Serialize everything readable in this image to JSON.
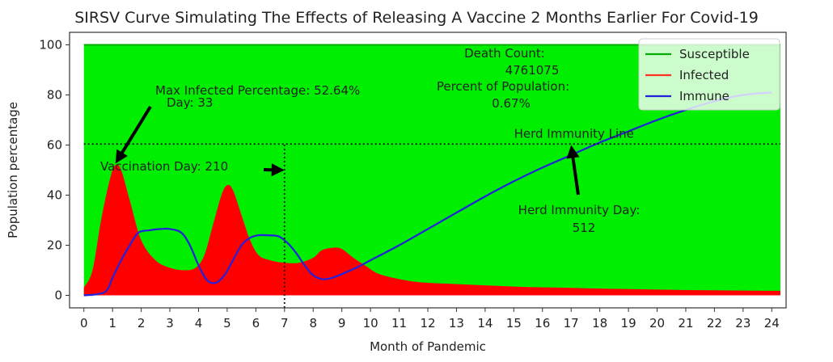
{
  "chart_data": {
    "type": "area",
    "title": "SIRSV Curve Simulating The Effects of Releasing A Vaccine 2 Months Earlier For Covid-19",
    "xlabel": "Month of Pandemic",
    "ylabel": "Population percentage",
    "xlim": [
      -0.5,
      24.5
    ],
    "ylim": [
      -5,
      105
    ],
    "x_ticks": [
      0,
      1,
      2,
      3,
      4,
      5,
      6,
      7,
      8,
      9,
      10,
      11,
      12,
      13,
      14,
      15,
      16,
      17,
      18,
      19,
      20,
      21,
      22,
      23,
      24
    ],
    "y_ticks": [
      0,
      20,
      40,
      60,
      80,
      100
    ],
    "grid": false,
    "legend_position": "top-right",
    "legend": [
      "Susceptible",
      "Infected",
      "Immune"
    ],
    "series": [
      {
        "name": "Susceptible",
        "color": "#00ee00",
        "style": "filled area from 0 to 100",
        "x": [
          0,
          24.3
        ],
        "values": [
          100,
          100
        ]
      },
      {
        "name": "Infected",
        "color": "#ff0000",
        "style": "filled area",
        "x": [
          0,
          0.3,
          0.6,
          0.9,
          1.1,
          1.3,
          1.6,
          2.0,
          2.5,
          3.0,
          3.5,
          3.9,
          4.2,
          4.5,
          4.8,
          5.0,
          5.2,
          5.5,
          5.8,
          6.1,
          6.5,
          7.0,
          7.5,
          8.0,
          8.3,
          8.7,
          9.0,
          9.4,
          9.8,
          10.2,
          10.6,
          11,
          11.5,
          12,
          13,
          14,
          15,
          16,
          17,
          18,
          19,
          20,
          21,
          22,
          23,
          24,
          24.3
        ],
        "values": [
          3,
          10,
          30,
          46,
          52,
          50,
          38,
          22,
          14,
          11,
          10,
          11,
          16,
          28,
          40,
          44,
          42,
          32,
          22,
          16,
          14,
          13,
          13,
          15,
          18,
          19,
          18.5,
          15,
          12,
          9,
          7.5,
          6.5,
          5.5,
          5,
          4.5,
          4,
          3.5,
          3.2,
          3,
          2.7,
          2.5,
          2.3,
          2.1,
          2,
          1.9,
          1.8,
          1.8
        ]
      },
      {
        "name": "Immune",
        "color": "#2222dd",
        "style": "line",
        "x": [
          0,
          0.5,
          0.8,
          1.0,
          1.3,
          1.6,
          1.9,
          2.3,
          2.7,
          3.0,
          3.4,
          3.7,
          4.0,
          4.3,
          4.6,
          4.9,
          5.2,
          5.5,
          5.8,
          6.1,
          6.4,
          6.8,
          7.1,
          7.4,
          7.7,
          8.0,
          8.3,
          8.6,
          8.9,
          9.2,
          9.5,
          10,
          11,
          12,
          13,
          14,
          15,
          16,
          17,
          18,
          19,
          20,
          21,
          22,
          23,
          24
        ],
        "values": [
          0,
          0.5,
          2,
          7,
          14,
          20,
          25,
          26,
          26.5,
          26.5,
          25,
          20,
          12,
          6,
          5,
          8,
          14,
          20,
          23,
          24,
          24,
          23.5,
          21,
          17,
          12,
          8,
          6.5,
          6.8,
          8,
          9.5,
          11,
          14,
          20,
          26.5,
          33,
          39.5,
          45.5,
          51,
          56,
          61,
          65.5,
          70,
          74,
          77.5,
          80,
          81
        ]
      }
    ],
    "reference_lines": [
      {
        "label": "Herd Immunity Line",
        "orientation": "horizontal",
        "y": 60.4,
        "style": "dotted"
      },
      {
        "orientation": "vertical",
        "x": 7,
        "y_range": [
          -5,
          60.4
        ],
        "style": "dotted"
      }
    ],
    "annotations": [
      {
        "lines": [
          "Max Infected Percentage: 52.64%",
          "Day: 33"
        ],
        "arrow_target": {
          "x": 1.1,
          "y": 52.6
        }
      },
      {
        "lines": [
          "Vaccination Day: 210"
        ],
        "arrow_target": {
          "x": 7,
          "y": 50
        }
      },
      {
        "lines": [
          "Death Count:",
          "4761075",
          "Percent of Population:",
          "0.67%"
        ]
      },
      {
        "lines": [
          "Herd Immunity Day:",
          "512"
        ],
        "arrow_target": {
          "x": 17,
          "y": 60
        }
      }
    ]
  }
}
